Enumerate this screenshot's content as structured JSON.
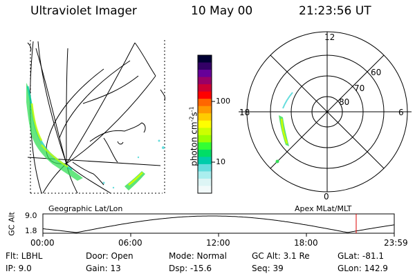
{
  "header": {
    "instrument": "Ultraviolet Imager",
    "date": "10 May 00",
    "time": "21:23:56 UT"
  },
  "panels": {
    "left_label": "Geographic Lat/Lon",
    "right_label": "Apex MLat/MLT"
  },
  "colorbar": {
    "unit_label": "photon cm",
    "unit_sup1": "-2",
    "unit_mid": "s",
    "unit_sup2": "-1",
    "ticks": [
      "100",
      "10"
    ],
    "colors": [
      "#000033",
      "#330066",
      "#660099",
      "#990066",
      "#cc0033",
      "#ff0000",
      "#ff6600",
      "#ff9900",
      "#ffcc00",
      "#ffff00",
      "#ccff00",
      "#99ff00",
      "#33ff33",
      "#00dd66",
      "#00ccaa",
      "#66dddd",
      "#aaeeee",
      "#ddf5f5",
      "#f2fafa"
    ]
  },
  "polar": {
    "mlt_labels": {
      "top": "12",
      "left": "18",
      "right": "6",
      "bottom": "0"
    },
    "lat_labels": [
      "60",
      "70",
      "80"
    ]
  },
  "altitude_plot": {
    "ylabel": "GC Alt",
    "ytick_top": "9.0",
    "ytick_bottom": "1.8",
    "xticks": [
      "00:00",
      "06:00",
      "12:00",
      "18:00",
      "23:59"
    ],
    "current_time_marker_hours": 21.4
  },
  "status": {
    "row1": [
      {
        "key": "filter",
        "text": "Flt: LBHL"
      },
      {
        "key": "door",
        "text": "Door: Open"
      },
      {
        "key": "mode",
        "text": "Mode: Normal"
      },
      {
        "key": "gcalt",
        "text": "GC Alt: 3.1 Re"
      },
      {
        "key": "glat",
        "text": "GLat: -81.1"
      }
    ],
    "row2": [
      {
        "key": "ip",
        "text": "IP: 9.0"
      },
      {
        "key": "gain",
        "text": "Gain: 13"
      },
      {
        "key": "dsp",
        "text": "Dsp: -15.6"
      },
      {
        "key": "seq",
        "text": "Seq: 39"
      },
      {
        "key": "glon",
        "text": "GLon: 142.9"
      }
    ]
  }
}
